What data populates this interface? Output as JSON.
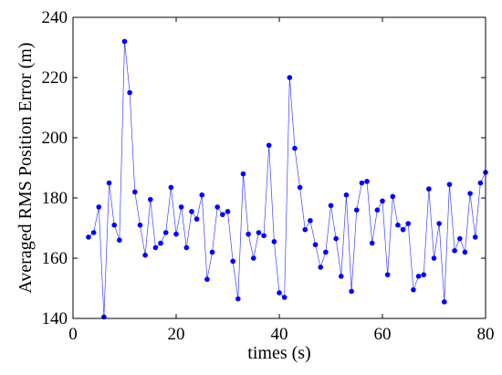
{
  "chart_data": {
    "type": "line",
    "title": "",
    "xlabel": "times (s)",
    "ylabel": "Averaged RMS Position Error (m)",
    "xlim": [
      0,
      80
    ],
    "ylim": [
      140,
      240
    ],
    "xticks": [
      0,
      20,
      40,
      60,
      80
    ],
    "yticks": [
      140,
      160,
      180,
      200,
      220,
      240
    ],
    "grid": false,
    "legend": "none",
    "series": [
      {
        "color": "#0000ff",
        "marker": "circle",
        "x": [
          3,
          4,
          5,
          6,
          7,
          8,
          9,
          10,
          11,
          12,
          13,
          14,
          15,
          16,
          17,
          18,
          19,
          20,
          21,
          22,
          23,
          24,
          25,
          26,
          27,
          28,
          29,
          30,
          31,
          32,
          33,
          34,
          35,
          36,
          37,
          38,
          39,
          40,
          41,
          42,
          43,
          44,
          45,
          46,
          47,
          48,
          49,
          50,
          51,
          52,
          53,
          54,
          55,
          56,
          57,
          58,
          59,
          60,
          61,
          62,
          63,
          64,
          65,
          66,
          67,
          68,
          69,
          70,
          71,
          72,
          73,
          74,
          75,
          76,
          77,
          78,
          79,
          80
        ],
        "y": [
          167,
          168.5,
          177,
          140.5,
          185,
          171,
          166,
          232,
          215,
          182,
          171,
          161,
          179.5,
          163.5,
          165,
          168.5,
          183.5,
          168,
          177,
          163.5,
          175.5,
          173,
          181,
          153,
          162,
          177,
          174.5,
          175.5,
          159,
          146.5,
          188,
          168,
          160,
          168.5,
          167.5,
          197.5,
          165.5,
          148.5,
          147,
          220,
          196.5,
          183.5,
          169.5,
          172.5,
          164.5,
          157,
          162,
          177.5,
          166.5,
          154,
          181,
          149,
          176,
          185,
          185.5,
          165,
          176,
          179,
          154.5,
          180.5,
          171,
          169.5,
          171.5,
          149.5,
          154,
          154.5,
          183,
          160,
          171.5,
          145.5,
          184.5,
          162.5,
          166.5,
          162,
          181.5,
          167,
          185,
          188.5
        ]
      }
    ]
  }
}
